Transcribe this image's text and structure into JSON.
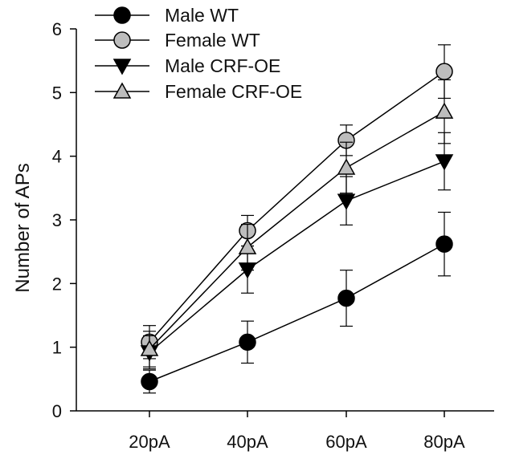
{
  "chart_data": {
    "type": "line",
    "title": "",
    "xlabel": "",
    "ylabel": "Number of APs",
    "categories": [
      "20pA",
      "40pA",
      "60pA",
      "80pA"
    ],
    "ylim": [
      0,
      6
    ],
    "yticks": [
      "0",
      "1",
      "2",
      "3",
      "4",
      "5",
      "6"
    ],
    "grid": false,
    "legend_position": "top-left",
    "series": [
      {
        "name": "Male WT",
        "marker": "circle",
        "color": "#000000",
        "values": [
          0.46,
          1.08,
          1.77,
          2.62
        ],
        "errors": [
          0.18,
          0.33,
          0.44,
          0.5
        ]
      },
      {
        "name": "Female WT",
        "marker": "circle",
        "color": "#bdbdbd",
        "values": [
          1.08,
          2.83,
          4.25,
          5.33
        ],
        "errors": [
          0.26,
          0.24,
          0.24,
          0.42
        ]
      },
      {
        "name": "Male CRF-OE",
        "marker": "triangle-down",
        "color": "#000000",
        "values": [
          0.92,
          2.22,
          3.3,
          3.92
        ],
        "errors": [
          0.26,
          0.37,
          0.38,
          0.45
        ]
      },
      {
        "name": "Female CRF-OE",
        "marker": "triangle-up",
        "color": "#bdbdbd",
        "values": [
          0.97,
          2.57,
          3.82,
          4.7
        ],
        "errors": [
          0.28,
          0.36,
          0.4,
          0.5
        ]
      }
    ]
  }
}
